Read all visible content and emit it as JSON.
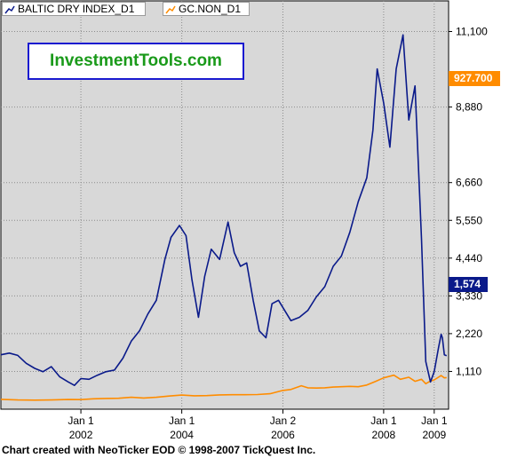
{
  "legend": [
    {
      "label": "BALTIC DRY INDEX_D1",
      "color": "#0a1a8a"
    },
    {
      "label": "GC.NON_D1",
      "color": "#ff8c00"
    }
  ],
  "brand": {
    "text": "InvestmentTools.com"
  },
  "current_values": {
    "gold": "927.700",
    "bdi": "1,574"
  },
  "footer": {
    "text": "Chart created with NeoTicker EOD © 1998-2007 TickQuest Inc."
  },
  "colors": {
    "plot_bg": "#d8d8d8",
    "bdi_line": "#0a1a8a",
    "gold_line": "#ff8c00",
    "gold_tag": "#ff8c00",
    "bdi_tag": "#0a1a8a"
  },
  "chart_data": {
    "type": "line",
    "grid": true,
    "legend_position": "top-left",
    "x_ticks": [
      {
        "top": "Jan 1",
        "bottom": "2002",
        "date": "2002-01-01"
      },
      {
        "top": "Jan 1",
        "bottom": "2004",
        "date": "2004-01-01"
      },
      {
        "top": "Jan 2",
        "bottom": "2006",
        "date": "2006-01-02"
      },
      {
        "top": "Jan 1",
        "bottom": "2008",
        "date": "2008-01-01"
      },
      {
        "top": "Jan 1",
        "bottom": "2009",
        "date": "2009-01-01"
      }
    ],
    "xlim": [
      "2000-06-01",
      "2009-04-15"
    ],
    "y_ticks": [
      "11,100",
      "8,880",
      "6,660",
      "5,550",
      "4,440",
      "3,330",
      "2,220",
      "1,110"
    ],
    "y_tick_values": [
      11100,
      8880,
      6660,
      5550,
      4440,
      3330,
      2220,
      1110
    ],
    "ylim": [
      0,
      12000
    ],
    "series": [
      {
        "name": "BALTIC DRY INDEX_D1",
        "x": [
          "2000-06-01",
          "2000-08-01",
          "2000-10-01",
          "2000-12-01",
          "2001-02-01",
          "2001-04-01",
          "2001-06-01",
          "2001-08-01",
          "2001-10-01",
          "2001-11-15",
          "2002-01-01",
          "2002-03-01",
          "2002-05-01",
          "2002-07-01",
          "2002-09-01",
          "2002-11-01",
          "2003-01-01",
          "2003-03-01",
          "2003-05-01",
          "2003-07-01",
          "2003-09-01",
          "2003-10-15",
          "2003-12-15",
          "2004-02-01",
          "2004-03-15",
          "2004-05-01",
          "2004-06-15",
          "2004-08-01",
          "2004-10-01",
          "2004-12-01",
          "2005-01-15",
          "2005-03-01",
          "2005-04-15",
          "2005-06-01",
          "2005-07-15",
          "2005-09-01",
          "2005-10-15",
          "2005-12-01",
          "2006-01-15",
          "2006-03-01",
          "2006-05-01",
          "2006-07-01",
          "2006-09-01",
          "2006-11-01",
          "2007-01-01",
          "2007-03-01",
          "2007-05-01",
          "2007-07-01",
          "2007-09-01",
          "2007-10-15",
          "2007-11-15",
          "2008-01-01",
          "2008-02-15",
          "2008-04-01",
          "2008-05-20",
          "2008-07-01",
          "2008-08-15",
          "2008-10-01",
          "2008-11-01",
          "2008-12-05",
          "2009-01-01",
          "2009-02-01",
          "2009-02-20",
          "2009-03-01",
          "2009-03-15",
          "2009-04-01"
        ],
        "values": [
          1600,
          1650,
          1580,
          1350,
          1200,
          1100,
          1250,
          950,
          800,
          700,
          900,
          880,
          1000,
          1100,
          1150,
          1500,
          2000,
          2300,
          2800,
          3200,
          4400,
          5050,
          5400,
          5100,
          3800,
          2700,
          3900,
          4700,
          4400,
          5500,
          4600,
          4200,
          4300,
          3200,
          2300,
          2100,
          3100,
          3200,
          2900,
          2600,
          2700,
          2900,
          3300,
          3600,
          4200,
          4500,
          5200,
          6100,
          6800,
          8200,
          10000,
          9000,
          7700,
          10000,
          11000,
          8500,
          9500,
          5000,
          1400,
          800,
          1100,
          1800,
          2200,
          2100,
          1600,
          1574
        ]
      },
      {
        "name": "GC.NON_D1",
        "x": [
          "2000-06-01",
          "2000-10-01",
          "2001-02-01",
          "2001-06-01",
          "2001-10-01",
          "2002-01-01",
          "2002-04-01",
          "2002-07-01",
          "2002-10-01",
          "2003-01-01",
          "2003-04-01",
          "2003-07-01",
          "2003-10-01",
          "2004-01-01",
          "2004-04-01",
          "2004-07-01",
          "2004-10-01",
          "2005-01-01",
          "2005-04-01",
          "2005-07-01",
          "2005-10-01",
          "2006-01-01",
          "2006-03-01",
          "2006-05-15",
          "2006-07-01",
          "2006-09-01",
          "2006-11-01",
          "2007-01-01",
          "2007-03-01",
          "2007-05-01",
          "2007-07-01",
          "2007-09-01",
          "2007-11-01",
          "2008-01-01",
          "2008-03-15",
          "2008-05-01",
          "2008-07-01",
          "2008-08-15",
          "2008-10-01",
          "2008-11-01",
          "2008-12-01",
          "2009-01-01",
          "2009-02-20",
          "2009-03-15",
          "2009-04-01"
        ],
        "values": [
          290,
          270,
          265,
          270,
          285,
          282,
          305,
          315,
          322,
          350,
          330,
          350,
          385,
          415,
          395,
          400,
          420,
          425,
          425,
          430,
          455,
          550,
          580,
          690,
          630,
          620,
          630,
          650,
          660,
          670,
          660,
          710,
          810,
          920,
          1000,
          880,
          940,
          820,
          880,
          750,
          820,
          860,
          990,
          920,
          927.7
        ]
      }
    ]
  }
}
